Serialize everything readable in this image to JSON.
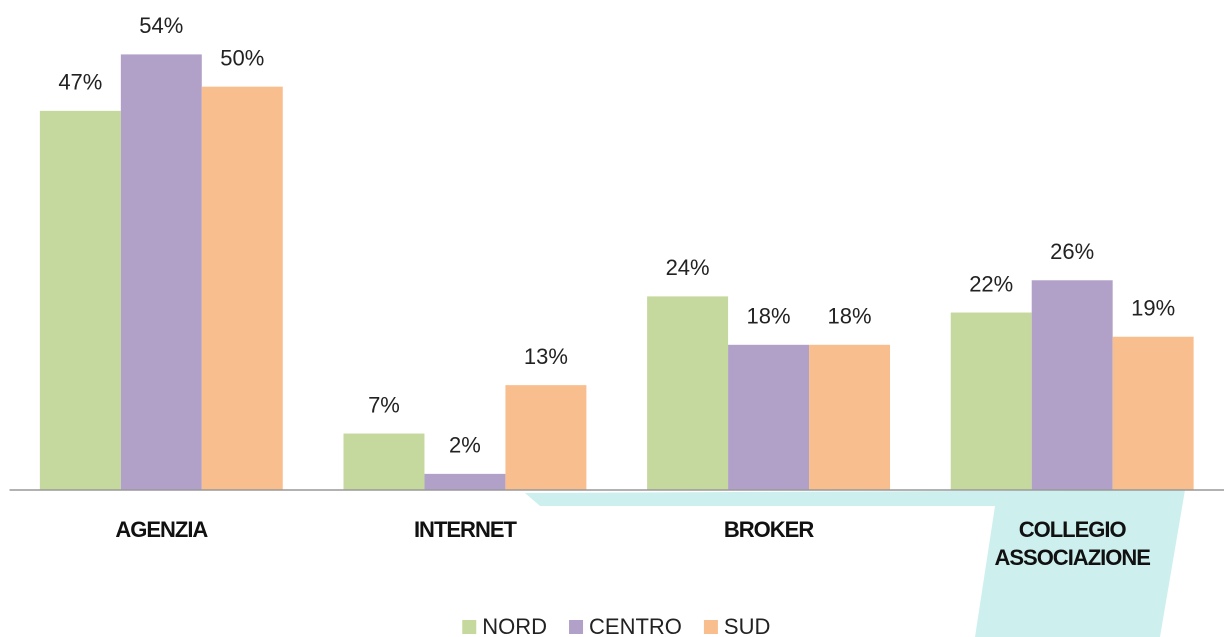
{
  "chart_data": {
    "type": "bar",
    "categories": [
      "AGENZIA",
      "INTERNET",
      "BROKER",
      "COLLEGIO ASSOCIAZIONE"
    ],
    "series": [
      {
        "name": "NORD",
        "color": "#c5d89d",
        "values": [
          47,
          7,
          24,
          22
        ],
        "value_labels": [
          "47%",
          "7%",
          "24%",
          "22%"
        ]
      },
      {
        "name": "CENTRO",
        "color": "#b1a1c8",
        "values": [
          54,
          2,
          18,
          26
        ],
        "value_labels": [
          "54%",
          "2%",
          "18%",
          "26%"
        ]
      },
      {
        "name": "SUD",
        "color": "#f9be8e",
        "values": [
          50,
          13,
          18,
          19
        ],
        "value_labels": [
          "50%",
          "13%",
          "18%",
          "19%"
        ]
      }
    ],
    "ylim": [
      0,
      60
    ],
    "legend": "bottom"
  }
}
